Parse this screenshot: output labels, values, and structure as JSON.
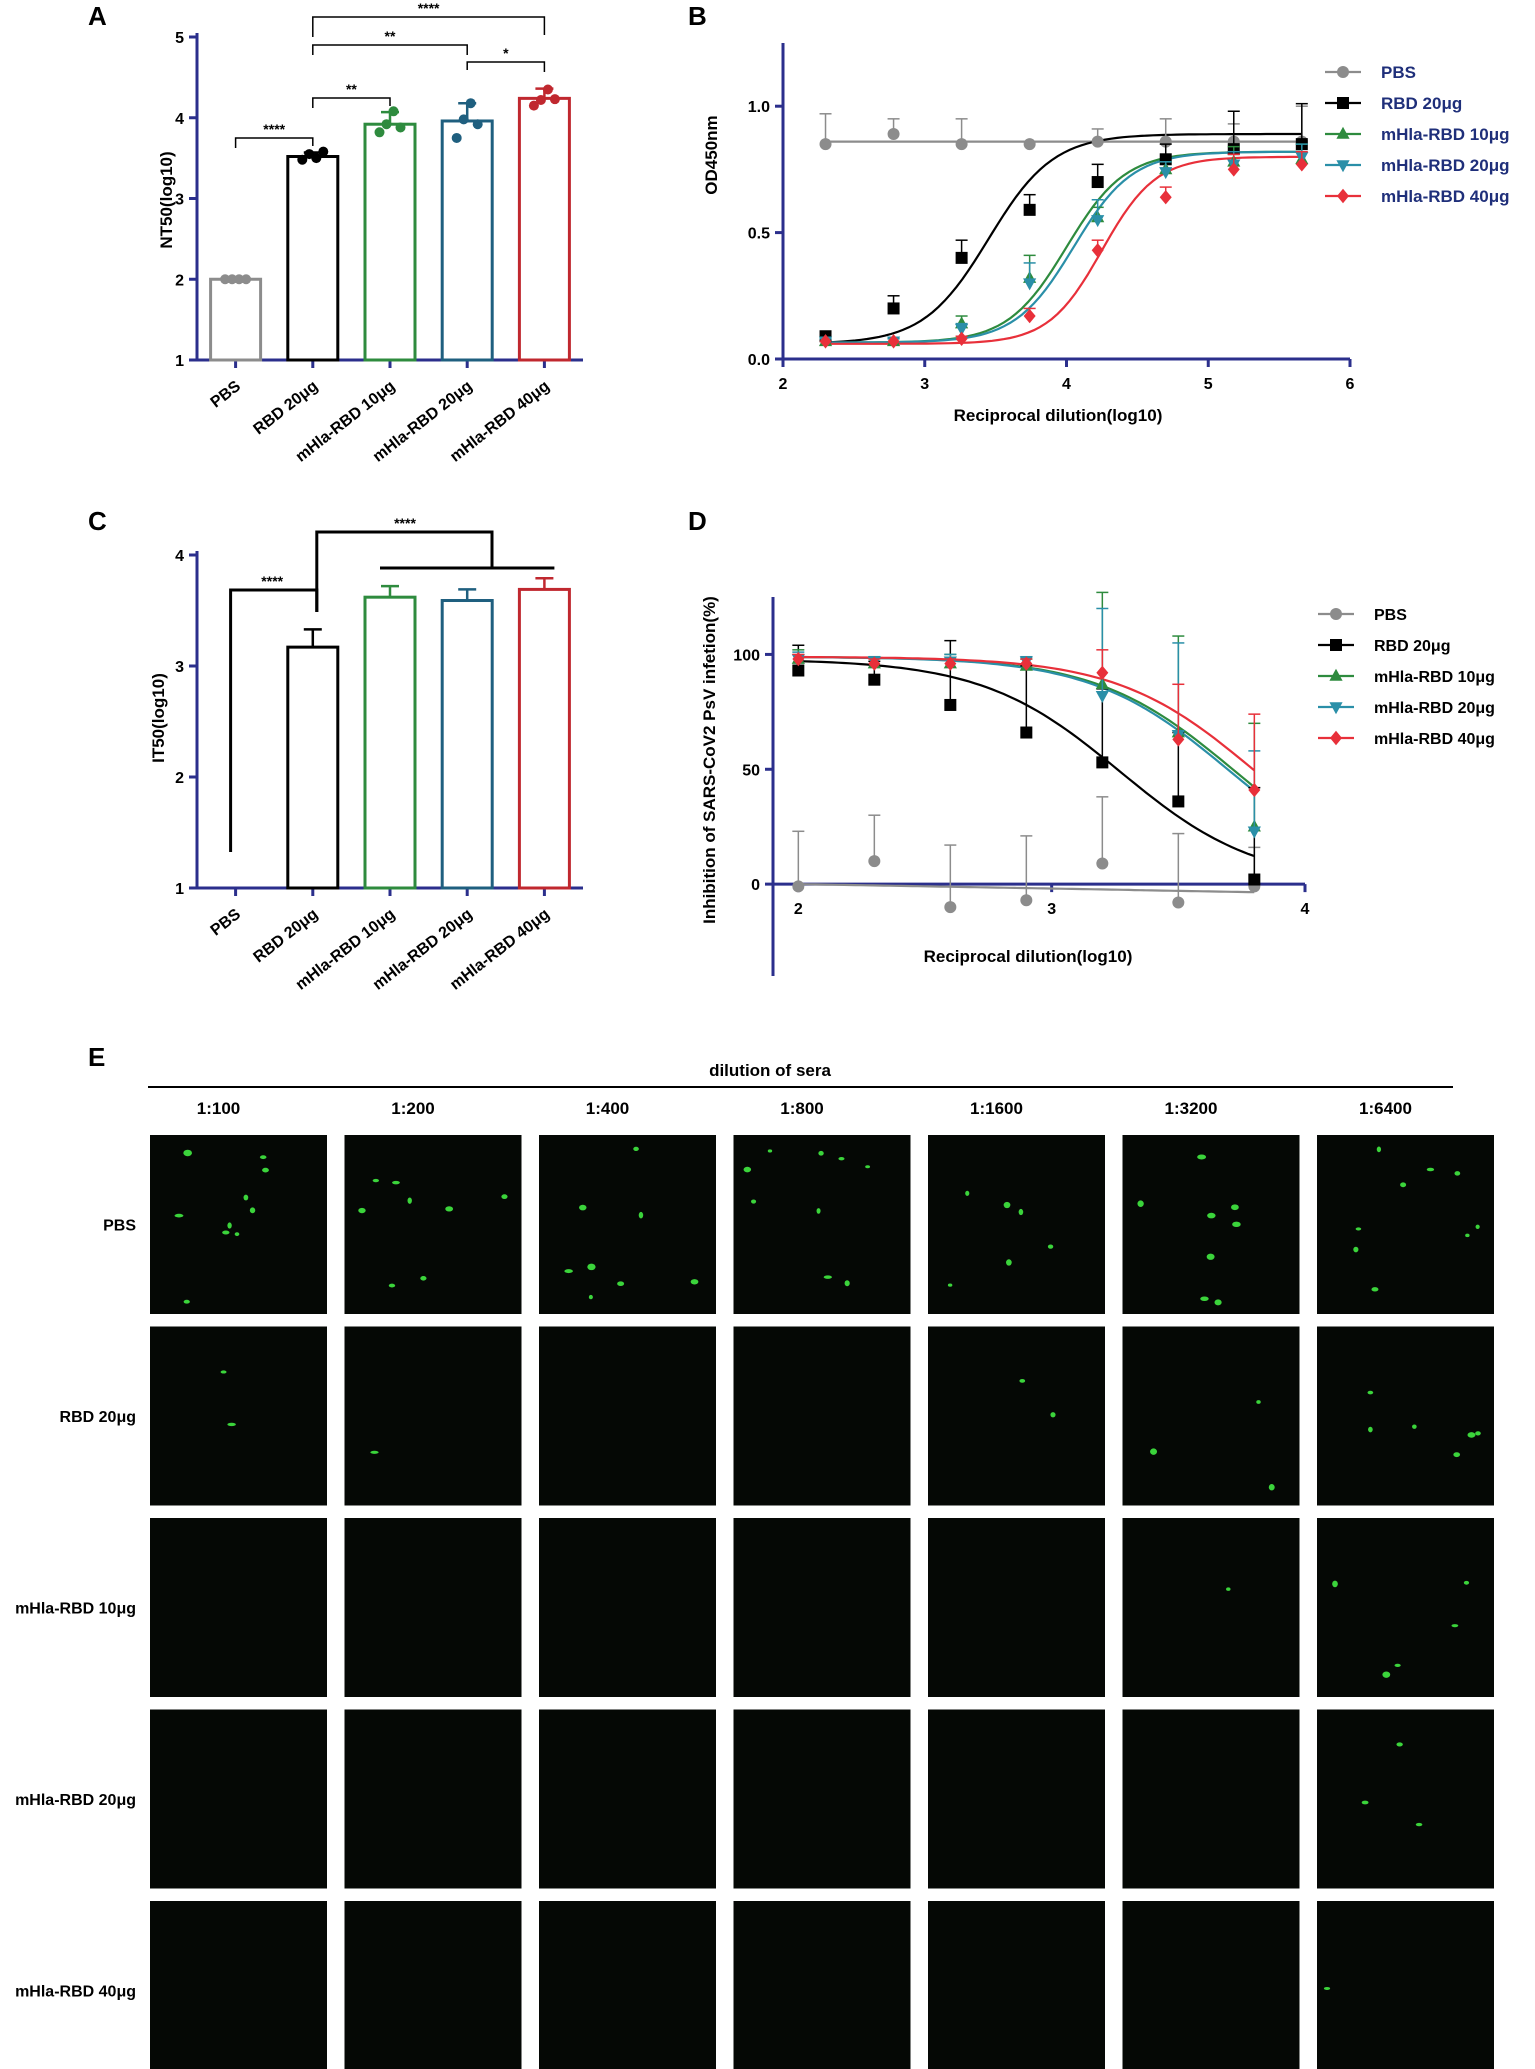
{
  "colors": {
    "axis": "#2b2f8c",
    "PBS": "#8c8c8c",
    "RBD 20μg": "#000000",
    "mHla-RBD 10μg": "#2e8b3e",
    "mHla-RBD 20μg": "#2a8fa8",
    "mHla-RBD 40μg": "#e8303a",
    "barA_mHla20": "#1f5f7f",
    "barA_mHla40": "#c0282f",
    "panelE_bg": "#050805",
    "panelE_spot": "#3bd43b"
  },
  "chart_data": [
    {
      "panel": "A",
      "type": "bar",
      "ylabel": "NT50(log10)",
      "ylim": [
        1,
        5
      ],
      "yticks": [
        "1",
        "2",
        "3",
        "4",
        "5"
      ],
      "categories": [
        "PBS",
        "RBD 20μg",
        "mHla-RBD 10μg",
        "mHla-RBD 20μg",
        "mHla-RBD 40μg"
      ],
      "values": [
        2.0,
        3.52,
        3.92,
        3.96,
        4.24
      ],
      "errors": [
        0.0,
        0.05,
        0.15,
        0.22,
        0.12
      ],
      "points": [
        [
          2.0,
          2.0,
          2.0,
          2.0
        ],
        [
          3.48,
          3.55,
          3.5,
          3.58
        ],
        [
          3.82,
          3.92,
          4.08,
          3.88
        ],
        [
          3.75,
          3.98,
          4.18,
          3.92
        ],
        [
          4.15,
          4.22,
          4.35,
          4.23
        ]
      ],
      "significance": [
        {
          "from": 0,
          "to": 1,
          "label": "****"
        },
        {
          "from": 1,
          "to": 2,
          "label": "**"
        },
        {
          "from": 1,
          "to": 3,
          "label": "**"
        },
        {
          "from": 3,
          "to": 4,
          "label": "*"
        },
        {
          "from": 1,
          "to": 4,
          "label": "****"
        }
      ]
    },
    {
      "panel": "B",
      "type": "line",
      "ylabel": "OD450nm",
      "xlabel": "Reciprocal dilution(log10)",
      "xlim": [
        2,
        6
      ],
      "ylim": [
        0,
        1.25
      ],
      "xticks": [
        "2",
        "3",
        "4",
        "5",
        "6"
      ],
      "yticks": [
        "0.0",
        "0.5",
        "1.0"
      ],
      "legend_position": "right",
      "x": [
        2.3,
        2.78,
        3.26,
        3.74,
        4.22,
        4.7,
        5.18,
        5.66
      ],
      "series": [
        {
          "name": "PBS",
          "marker": "circle",
          "values": [
            0.85,
            0.89,
            0.85,
            0.85,
            0.86,
            0.86,
            0.86,
            0.86
          ],
          "errors": [
            0.12,
            0.06,
            0.1,
            0.01,
            0.05,
            0.09,
            0.07,
            0.14
          ],
          "fit": {
            "type": "flat",
            "top": 0.86
          }
        },
        {
          "name": "RBD 20μg",
          "marker": "square",
          "values": [
            0.09,
            0.2,
            0.4,
            0.59,
            0.7,
            0.79,
            0.83,
            0.85
          ],
          "errors": [
            0.0,
            0.05,
            0.07,
            0.06,
            0.07,
            0.06,
            0.15,
            0.16
          ],
          "fit": {
            "bottom": 0.06,
            "top": 0.89,
            "ec50": 3.45,
            "hill": 1.9
          }
        },
        {
          "name": "mHla-RBD 10μg",
          "marker": "triangle-up",
          "values": [
            0.07,
            0.07,
            0.14,
            0.32,
            0.56,
            0.75,
            0.78,
            0.79
          ],
          "errors": [
            0.01,
            0.01,
            0.03,
            0.09,
            0.04,
            0.03,
            0.06,
            0.06
          ],
          "fit": {
            "bottom": 0.065,
            "top": 0.82,
            "ec50": 4.0,
            "hill": 2.1
          }
        },
        {
          "name": "mHla-RBD 20μg",
          "marker": "triangle-down",
          "values": [
            0.07,
            0.07,
            0.12,
            0.3,
            0.55,
            0.74,
            0.77,
            0.8
          ],
          "errors": [
            0.01,
            0.01,
            0.02,
            0.08,
            0.08,
            0.04,
            0.05,
            0.05
          ],
          "fit": {
            "bottom": 0.065,
            "top": 0.82,
            "ec50": 4.05,
            "hill": 2.1
          }
        },
        {
          "name": "mHla-RBD 40μg",
          "marker": "diamond",
          "values": [
            0.07,
            0.07,
            0.08,
            0.17,
            0.43,
            0.64,
            0.75,
            0.77
          ],
          "errors": [
            0.0,
            0.0,
            0.01,
            0.03,
            0.04,
            0.04,
            0.06,
            0.05
          ],
          "fit": {
            "bottom": 0.06,
            "top": 0.8,
            "ec50": 4.25,
            "hill": 2.3
          }
        }
      ]
    },
    {
      "panel": "C",
      "type": "bar",
      "ylabel": "IT50(log10)",
      "ylim": [
        1,
        4
      ],
      "yticks": [
        "1",
        "2",
        "3",
        "4"
      ],
      "categories": [
        "PBS",
        "RBD 20μg",
        "mHla-RBD 10μg",
        "mHla-RBD 20μg",
        "mHla-RBD 40μg"
      ],
      "values": [
        1.0,
        3.17,
        3.62,
        3.59,
        3.69
      ],
      "errors": [
        0.0,
        0.16,
        0.1,
        0.1,
        0.1
      ],
      "significance": [
        {
          "from": 0,
          "to": 1,
          "label": "****"
        },
        {
          "from": 1,
          "to": "2-4",
          "label": "****"
        }
      ]
    },
    {
      "panel": "D",
      "type": "line",
      "ylabel": "Inhibition of SARS-CoV2 PsV infetion(%)",
      "xlabel": "Reciprocal dilution(log10)",
      "xlim": [
        1.9,
        4
      ],
      "ylim": [
        -40,
        125
      ],
      "xticks": [
        "2",
        "3",
        "4"
      ],
      "yticks": [
        "0",
        "50",
        "100"
      ],
      "legend_position": "right",
      "x": [
        2.0,
        2.3,
        2.6,
        2.9,
        3.2,
        3.5,
        3.8
      ],
      "series": [
        {
          "name": "PBS",
          "marker": "circle",
          "values": [
            -1,
            10,
            -10,
            -7,
            9,
            -8,
            -1
          ],
          "errors": [
            24,
            20,
            27,
            28,
            29,
            30,
            17
          ],
          "fit": {
            "type": "line",
            "from": 0.0,
            "to": -3.5
          }
        },
        {
          "name": "RBD 20μg",
          "marker": "square",
          "values": [
            93,
            89,
            78,
            66,
            53,
            36,
            2
          ],
          "errors": [
            11,
            8,
            28,
            29,
            32,
            30,
            40
          ],
          "fit": {
            "bottom": 0,
            "top": 98,
            "ec50": 3.27,
            "hill": 1.6
          }
        },
        {
          "name": "mHla-RBD 10μg",
          "marker": "triangle-up",
          "values": [
            98,
            96,
            96,
            95,
            87,
            66,
            25
          ],
          "errors": [
            4,
            3,
            4,
            3,
            40,
            42,
            45
          ],
          "fit": {
            "bottom": 0,
            "top": 99,
            "ec50": 3.72,
            "hill": 1.6
          }
        },
        {
          "name": "mHla-RBD 20μg",
          "marker": "triangle-down",
          "values": [
            98,
            97,
            97,
            97,
            82,
            65,
            23
          ],
          "errors": [
            3,
            2,
            3,
            2,
            38,
            40,
            35
          ],
          "fit": {
            "bottom": 0,
            "top": 99,
            "ec50": 3.7,
            "hill": 1.6
          }
        },
        {
          "name": "mHla-RBD 40μg",
          "marker": "diamond",
          "values": [
            98,
            96,
            96,
            96,
            92,
            63,
            41
          ],
          "errors": [
            2,
            2,
            2,
            2,
            10,
            24,
            33
          ],
          "fit": {
            "bottom": 0,
            "top": 99,
            "ec50": 3.8,
            "hill": 1.6
          }
        }
      ]
    }
  ],
  "panel_labels": {
    "A": "A",
    "B": "B",
    "C": "C",
    "D": "D",
    "E": "E"
  },
  "panel_e": {
    "header": "dilution of sera",
    "columns": [
      "1:100",
      "1:200",
      "1:400",
      "1:800",
      "1:1600",
      "1:3200",
      "1:6400"
    ],
    "rows": [
      "PBS",
      "RBD 20μg",
      "mHla-RBD 10μg",
      "mHla-RBD 20μg",
      "mHla-RBD 40μg"
    ],
    "spot_counts": [
      [
        10,
        8,
        8,
        9,
        6,
        8,
        9
      ],
      [
        2,
        1,
        0,
        0,
        2,
        3,
        6
      ],
      [
        0,
        0,
        0,
        0,
        0,
        1,
        5
      ],
      [
        0,
        0,
        0,
        0,
        0,
        0,
        3
      ],
      [
        0,
        0,
        0,
        0,
        0,
        0,
        1
      ]
    ]
  }
}
